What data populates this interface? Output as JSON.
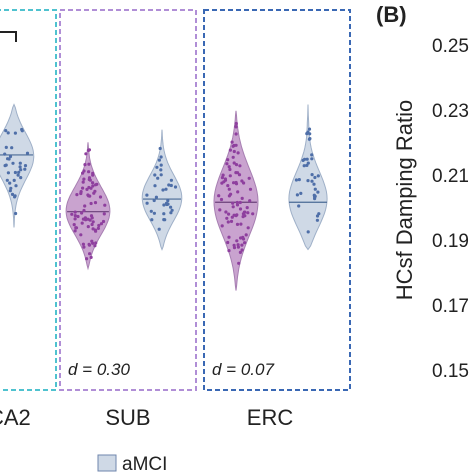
{
  "chart_data": [
    {
      "type": "violin",
      "groups": [
        "CA2",
        "SUB",
        "ERC"
      ],
      "series": [
        {
          "name": "",
          "color": "#c9a3cf",
          "dot_color": "#8e3f9e"
        },
        {
          "name": "aMCI",
          "color": "#cfd9e6",
          "dot_color": "#4f6fa8"
        }
      ],
      "group_labels": {
        "ca2": "CA2",
        "sub": "SUB",
        "erc": "ERC"
      },
      "effect_sizes": {
        "sub": "d = 0.30",
        "erc": "d = 0.07"
      },
      "panel_border_colors": [
        "#4fc2cf",
        "#b08ed6",
        "#3a68b4"
      ],
      "data": {
        "CA2": {
          "series2": {
            "min": 0.188,
            "median": 0.211,
            "max": 0.227,
            "n": 35
          }
        },
        "SUB": {
          "series1": {
            "min": 0.175,
            "median": 0.193,
            "max": 0.215,
            "n": 80
          },
          "series2": {
            "min": 0.181,
            "median": 0.197,
            "max": 0.219,
            "n": 35
          }
        },
        "ERC": {
          "series1": {
            "min": 0.168,
            "median": 0.196,
            "max": 0.225,
            "n": 90
          },
          "series2": {
            "min": 0.181,
            "median": 0.196,
            "max": 0.227,
            "n": 35
          }
        }
      },
      "legend": {
        "items": [
          "aMCI"
        ],
        "placement": "bottom"
      }
    },
    {
      "type": "scatter",
      "panel_label": "(B)",
      "ylabel": "HCsf Damping Ratio",
      "yticks": [
        "0.25",
        "0.23",
        "0.21",
        "0.19",
        "0.17",
        "0.15"
      ],
      "ylim": [
        0.15,
        0.25
      ]
    }
  ]
}
